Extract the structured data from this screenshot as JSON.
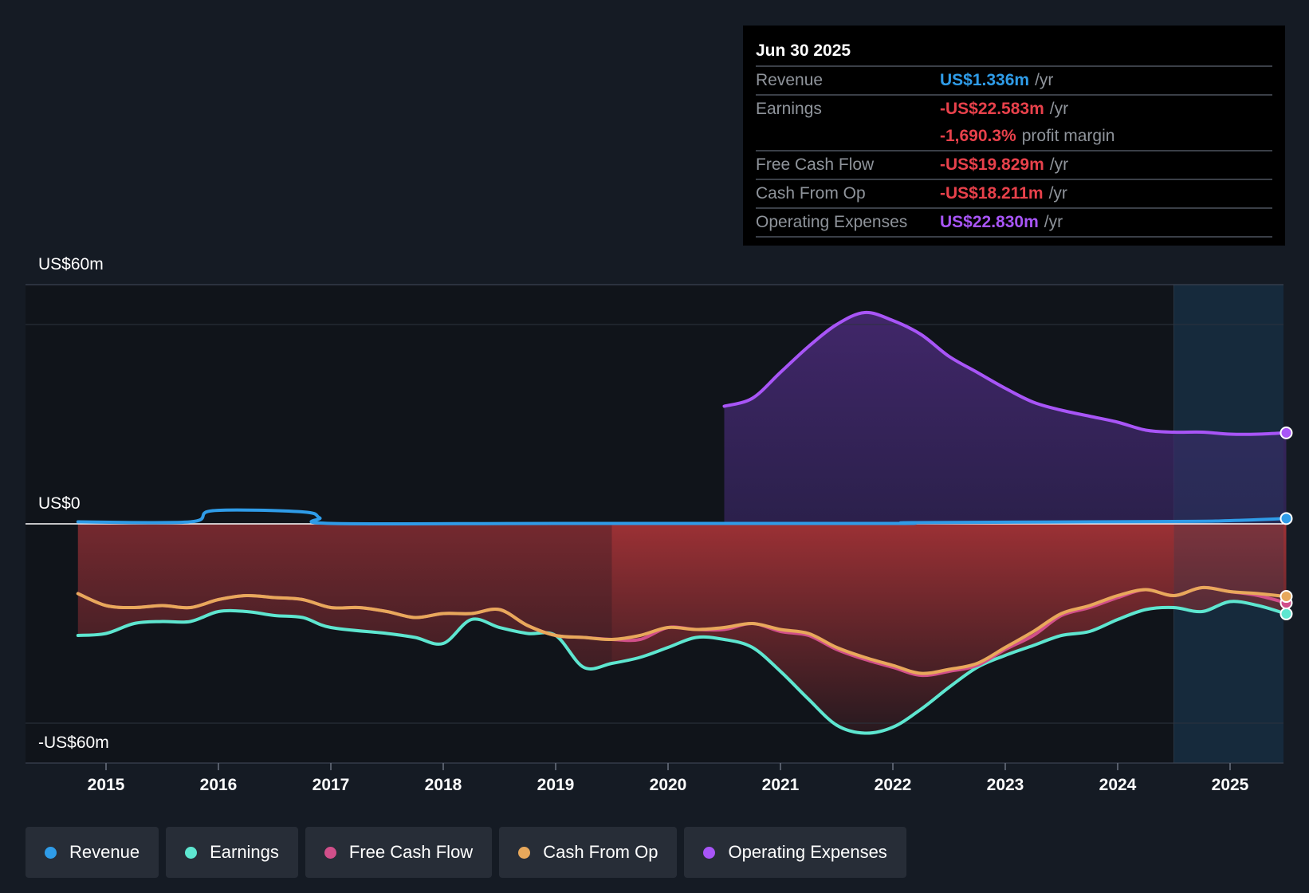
{
  "tooltip": {
    "date": "Jun 30 2025",
    "rows": [
      {
        "label": "Revenue",
        "value": "US$1.336m",
        "unit": "/yr",
        "color": "#2f9ce8"
      },
      {
        "label": "Earnings",
        "value": "-US$22.583m",
        "unit": "/yr",
        "color": "#e8414b"
      },
      {
        "label": "",
        "value": "-1,690.3%",
        "unit": "profit margin",
        "color": "#e8414b"
      },
      {
        "label": "Free Cash Flow",
        "value": "-US$19.829m",
        "unit": "/yr",
        "color": "#e8414b"
      },
      {
        "label": "Cash From Op",
        "value": "-US$18.211m",
        "unit": "/yr",
        "color": "#e8414b"
      },
      {
        "label": "Operating Expenses",
        "value": "US$22.830m",
        "unit": "/yr",
        "color": "#a855f7"
      }
    ]
  },
  "legend": [
    {
      "label": "Revenue",
      "color": "#2f9ce8"
    },
    {
      "label": "Earnings",
      "color": "#5ee6d0"
    },
    {
      "label": "Free Cash Flow",
      "color": "#d14f8a"
    },
    {
      "label": "Cash From Op",
      "color": "#e8a85b"
    },
    {
      "label": "Operating Expenses",
      "color": "#a855f7"
    }
  ],
  "chart_data": {
    "type": "line",
    "ylim": [
      -60,
      60
    ],
    "y_tick_labels": [
      "US$60m",
      "US$0",
      "-US$60m"
    ],
    "x_ticks": [
      "2015",
      "2016",
      "2017",
      "2018",
      "2019",
      "2020",
      "2021",
      "2022",
      "2023",
      "2024",
      "2025"
    ],
    "grid": true,
    "forecast_shaded_from": 2024.5,
    "series": [
      {
        "name": "Revenue",
        "color": "#2f9ce8",
        "points": [
          [
            2014.75,
            0.5
          ],
          [
            2015.75,
            0.5
          ],
          [
            2015.95,
            3.3
          ],
          [
            2016.75,
            3.0
          ],
          [
            2016.9,
            1.5
          ],
          [
            2017.0,
            0.1
          ],
          [
            2019.0,
            0.1
          ],
          [
            2022.0,
            0.1
          ],
          [
            2022.2,
            0.3
          ],
          [
            2024.5,
            0.6
          ],
          [
            2025.0,
            0.8
          ],
          [
            2025.5,
            1.336
          ]
        ]
      },
      {
        "name": "Earnings",
        "color": "#5ee6d0",
        "points": [
          [
            2014.75,
            -28
          ],
          [
            2015.0,
            -27.5
          ],
          [
            2015.25,
            -25
          ],
          [
            2015.5,
            -24.5
          ],
          [
            2015.75,
            -24.5
          ],
          [
            2016.0,
            -22
          ],
          [
            2016.25,
            -22
          ],
          [
            2016.5,
            -23
          ],
          [
            2016.75,
            -23.5
          ],
          [
            2017.0,
            -26
          ],
          [
            2017.5,
            -27.5
          ],
          [
            2017.75,
            -28.5
          ],
          [
            2018.0,
            -30
          ],
          [
            2018.25,
            -24
          ],
          [
            2018.5,
            -26
          ],
          [
            2018.75,
            -27.5
          ],
          [
            2019.0,
            -28
          ],
          [
            2019.25,
            -36
          ],
          [
            2019.5,
            -35
          ],
          [
            2019.75,
            -33.5
          ],
          [
            2020.0,
            -31
          ],
          [
            2020.25,
            -28.5
          ],
          [
            2020.5,
            -29
          ],
          [
            2020.75,
            -31
          ],
          [
            2021.0,
            -37
          ],
          [
            2021.25,
            -44
          ],
          [
            2021.5,
            -50.5
          ],
          [
            2021.75,
            -52.5
          ],
          [
            2022.0,
            -51
          ],
          [
            2022.25,
            -46.5
          ],
          [
            2022.5,
            -41
          ],
          [
            2022.75,
            -36
          ],
          [
            2023.0,
            -33
          ],
          [
            2023.25,
            -30.5
          ],
          [
            2023.5,
            -28
          ],
          [
            2023.75,
            -27
          ],
          [
            2024.0,
            -24
          ],
          [
            2024.25,
            -21.5
          ],
          [
            2024.5,
            -21
          ],
          [
            2024.75,
            -22
          ],
          [
            2025.0,
            -19.5
          ],
          [
            2025.25,
            -20.5
          ],
          [
            2025.5,
            -22.583
          ]
        ]
      },
      {
        "name": "Free Cash Flow",
        "color": "#d14f8a",
        "points": [
          [
            2014.75,
            -17.5
          ],
          [
            2015.0,
            -20.5
          ],
          [
            2015.25,
            -21
          ],
          [
            2015.5,
            -20.5
          ],
          [
            2015.75,
            -21
          ],
          [
            2016.0,
            -19
          ],
          [
            2016.25,
            -18
          ],
          [
            2016.5,
            -18.5
          ],
          [
            2016.75,
            -19
          ],
          [
            2017.0,
            -21
          ],
          [
            2017.25,
            -21
          ],
          [
            2017.5,
            -22
          ],
          [
            2017.75,
            -23.5
          ],
          [
            2018.0,
            -22.5
          ],
          [
            2018.25,
            -22.5
          ],
          [
            2018.5,
            -21.5
          ],
          [
            2018.75,
            -25.5
          ],
          [
            2019.0,
            -28
          ],
          [
            2019.25,
            -28.5
          ],
          [
            2019.5,
            -29
          ],
          [
            2019.75,
            -29
          ],
          [
            2020.0,
            -26
          ],
          [
            2020.25,
            -26.5
          ],
          [
            2020.5,
            -26.5
          ],
          [
            2020.75,
            -25
          ],
          [
            2021.0,
            -27
          ],
          [
            2021.25,
            -28
          ],
          [
            2021.5,
            -31.5
          ],
          [
            2021.75,
            -34
          ],
          [
            2022.0,
            -36
          ],
          [
            2022.25,
            -38
          ],
          [
            2022.5,
            -37
          ],
          [
            2022.75,
            -35.5
          ],
          [
            2023.0,
            -31.5
          ],
          [
            2023.25,
            -28
          ],
          [
            2023.5,
            -23
          ],
          [
            2023.75,
            -21
          ],
          [
            2024.0,
            -18.5
          ],
          [
            2024.25,
            -16.5
          ],
          [
            2024.5,
            -18
          ],
          [
            2024.75,
            -16
          ],
          [
            2025.0,
            -17
          ],
          [
            2025.25,
            -18
          ],
          [
            2025.5,
            -19.829
          ]
        ]
      },
      {
        "name": "Cash From Op",
        "color": "#e8a85b",
        "points": [
          [
            2014.75,
            -17.5
          ],
          [
            2015.0,
            -20.5
          ],
          [
            2015.25,
            -21
          ],
          [
            2015.5,
            -20.5
          ],
          [
            2015.75,
            -21
          ],
          [
            2016.0,
            -19
          ],
          [
            2016.25,
            -18
          ],
          [
            2016.5,
            -18.5
          ],
          [
            2016.75,
            -19
          ],
          [
            2017.0,
            -21
          ],
          [
            2017.25,
            -21
          ],
          [
            2017.5,
            -22
          ],
          [
            2017.75,
            -23.5
          ],
          [
            2018.0,
            -22.5
          ],
          [
            2018.25,
            -22.5
          ],
          [
            2018.5,
            -21.5
          ],
          [
            2018.75,
            -25.5
          ],
          [
            2019.0,
            -28
          ],
          [
            2019.25,
            -28.5
          ],
          [
            2019.5,
            -29
          ],
          [
            2019.75,
            -28
          ],
          [
            2020.0,
            -26
          ],
          [
            2020.25,
            -26.5
          ],
          [
            2020.5,
            -26
          ],
          [
            2020.75,
            -25
          ],
          [
            2021.0,
            -26.5
          ],
          [
            2021.25,
            -27.5
          ],
          [
            2021.5,
            -31
          ],
          [
            2021.75,
            -33.5
          ],
          [
            2022.0,
            -35.5
          ],
          [
            2022.25,
            -37.5
          ],
          [
            2022.5,
            -36.5
          ],
          [
            2022.75,
            -35
          ],
          [
            2023.0,
            -31
          ],
          [
            2023.25,
            -27
          ],
          [
            2023.5,
            -22.5
          ],
          [
            2023.75,
            -20.5
          ],
          [
            2024.0,
            -18
          ],
          [
            2024.25,
            -16.5
          ],
          [
            2024.5,
            -18
          ],
          [
            2024.75,
            -16
          ],
          [
            2025.0,
            -17
          ],
          [
            2025.25,
            -17.5
          ],
          [
            2025.5,
            -18.211
          ]
        ]
      },
      {
        "name": "Operating Expenses",
        "color": "#a855f7",
        "points": [
          [
            2020.5,
            29.5
          ],
          [
            2020.75,
            31.5
          ],
          [
            2021.0,
            38
          ],
          [
            2021.25,
            44.5
          ],
          [
            2021.5,
            50
          ],
          [
            2021.75,
            53
          ],
          [
            2022.0,
            51
          ],
          [
            2022.25,
            47.5
          ],
          [
            2022.5,
            42
          ],
          [
            2022.75,
            38
          ],
          [
            2023.0,
            34
          ],
          [
            2023.25,
            30.5
          ],
          [
            2023.5,
            28.5
          ],
          [
            2023.75,
            27
          ],
          [
            2024.0,
            25.5
          ],
          [
            2024.25,
            23.5
          ],
          [
            2024.5,
            23
          ],
          [
            2024.75,
            23
          ],
          [
            2025.0,
            22.5
          ],
          [
            2025.25,
            22.5
          ],
          [
            2025.5,
            22.83
          ]
        ]
      }
    ]
  }
}
